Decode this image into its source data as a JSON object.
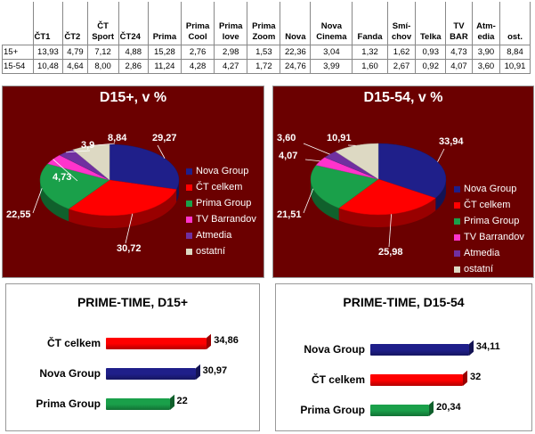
{
  "table": {
    "columns": [
      {
        "key": "ct1",
        "lines": [
          "ČT1"
        ]
      },
      {
        "key": "ct2",
        "lines": [
          "ČT2"
        ]
      },
      {
        "key": "ctsport",
        "lines": [
          "ČT",
          "Sport"
        ]
      },
      {
        "key": "ct24",
        "lines": [
          "ČT24"
        ]
      },
      {
        "key": "prima",
        "lines": [
          "Prima"
        ]
      },
      {
        "key": "primacool",
        "lines": [
          "Prima",
          "Cool"
        ]
      },
      {
        "key": "primalove",
        "lines": [
          "Prima",
          "love"
        ]
      },
      {
        "key": "primazoom",
        "lines": [
          "Prima",
          "Zoom"
        ]
      },
      {
        "key": "nova",
        "lines": [
          "Nova"
        ]
      },
      {
        "key": "novacinema",
        "lines": [
          "Nova",
          "Cinema"
        ]
      },
      {
        "key": "fanda",
        "lines": [
          "Fanda"
        ]
      },
      {
        "key": "smichov",
        "lines": [
          "Smí-",
          "chov"
        ]
      },
      {
        "key": "telka",
        "lines": [
          "Telka"
        ]
      },
      {
        "key": "tvbar",
        "lines": [
          "TV",
          "BAR"
        ]
      },
      {
        "key": "atmedia",
        "lines": [
          "Atm-",
          "edia"
        ]
      },
      {
        "key": "ost",
        "lines": [
          "ost."
        ]
      }
    ],
    "rows": [
      {
        "label": "15+",
        "values": [
          "13,93",
          "4,79",
          "7,12",
          "4,88",
          "15,28",
          "2,76",
          "2,98",
          "1,53",
          "22,36",
          "3,04",
          "1,32",
          "1,62",
          "0,93",
          "4,73",
          "3,90",
          "8,84"
        ]
      },
      {
        "label": "15-54",
        "values": [
          "10,48",
          "4,64",
          "8,00",
          "2,86",
          "11,24",
          "4,28",
          "4,27",
          "1,72",
          "24,76",
          "3,99",
          "1,60",
          "2,67",
          "0,92",
          "4,07",
          "3,60",
          "10,91"
        ]
      }
    ]
  },
  "chart_data": [
    {
      "type": "pie",
      "title": "D15+, v %",
      "legend": "right",
      "slices": [
        {
          "name": "Nova Group",
          "value": 29.27,
          "label": "29,27",
          "color": "#1f1f8a"
        },
        {
          "name": "ČT celkem",
          "value": 30.72,
          "label": "30,72",
          "color": "#ff0000"
        },
        {
          "name": "Prima Group",
          "value": 22.55,
          "label": "22,55",
          "color": "#1aa04a"
        },
        {
          "name": "TV Barrandov",
          "value": 4.73,
          "label": "4,73",
          "color": "#ff33cc"
        },
        {
          "name": "Atmedia",
          "value": 3.9,
          "label": "3,9",
          "color": "#7030a0"
        },
        {
          "name": "ostatní",
          "value": 8.84,
          "label": "8,84",
          "color": "#ddd9c3"
        }
      ]
    },
    {
      "type": "pie",
      "title": "D15-54, v %",
      "legend": "right",
      "slices": [
        {
          "name": "Nova Group",
          "value": 33.94,
          "label": "33,94",
          "color": "#1f1f8a"
        },
        {
          "name": "ČT celkem",
          "value": 25.98,
          "label": "25,98",
          "color": "#ff0000"
        },
        {
          "name": "Prima Group",
          "value": 21.51,
          "label": "21,51",
          "color": "#1aa04a"
        },
        {
          "name": "TV Barrandov",
          "value": 4.07,
          "label": "4,07",
          "color": "#ff33cc"
        },
        {
          "name": "Atmedia",
          "value": 3.6,
          "label": "3,60",
          "color": "#7030a0"
        },
        {
          "name": "ostatní",
          "value": 10.91,
          "label": "10,91",
          "color": "#ddd9c3"
        }
      ]
    },
    {
      "type": "bar",
      "orientation": "horizontal",
      "title": "PRIME-TIME, D15+",
      "categories": [
        "ČT celkem",
        "Nova Group",
        "Prima Group"
      ],
      "values": [
        34.86,
        30.97,
        22
      ],
      "value_labels": [
        "34,86",
        "30,97",
        "22"
      ],
      "colors": [
        "#ff0000",
        "#1f1f8a",
        "#1aa04a"
      ],
      "xlim": [
        0,
        40
      ]
    },
    {
      "type": "bar",
      "orientation": "horizontal",
      "title": "PRIME-TIME, D15-54",
      "categories": [
        "Nova Group",
        "ČT celkem",
        "Prima Group"
      ],
      "values": [
        34.11,
        32,
        20.34
      ],
      "value_labels": [
        "34,11",
        "32",
        "20,34"
      ],
      "colors": [
        "#1f1f8a",
        "#ff0000",
        "#1aa04a"
      ],
      "xlim": [
        0,
        40
      ]
    }
  ]
}
